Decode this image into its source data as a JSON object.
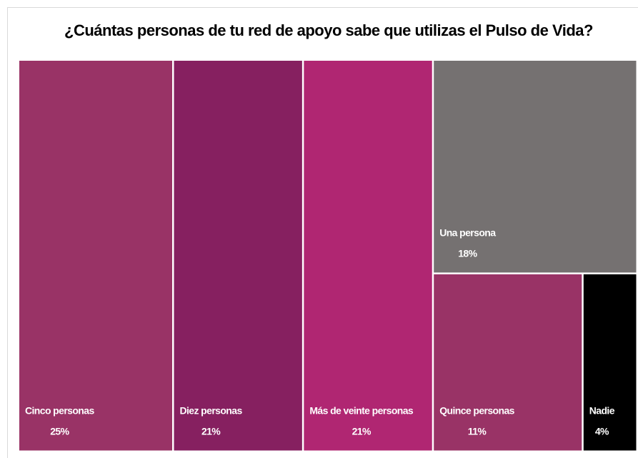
{
  "chart_data": {
    "type": "treemap",
    "title": "¿Cuántas personas de tu red de apoyo sabe que utilizas el Pulso de Vida?",
    "categories": [
      "Cinco personas",
      "Diez personas",
      "Más de veinte personas",
      "Una persona",
      "Quince personas",
      "Nadie"
    ],
    "values": [
      25,
      21,
      21,
      18,
      11,
      4
    ],
    "value_labels": [
      "25%",
      "21%",
      "21%",
      "18%",
      "11%",
      "4%"
    ],
    "colors": [
      "#993366",
      "#862060",
      "#b02672",
      "#757171",
      "#993366",
      "#000000"
    ]
  }
}
